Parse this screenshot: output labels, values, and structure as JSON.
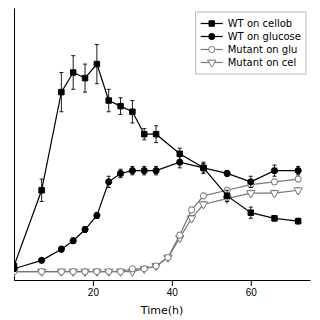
{
  "chart_data": {
    "type": "line",
    "xlabel": "Time(h)",
    "xlim": [
      0,
      75
    ],
    "ylim": [
      -0.02,
      0.95
    ],
    "xticks": [
      20,
      40,
      60
    ],
    "tick_labels": "x",
    "legend": "upper right",
    "series": [
      {
        "name": "WT on cellob",
        "color": "#000000",
        "marker": "square",
        "line_style": "solid",
        "x": [
          0,
          7,
          12,
          15,
          18,
          21,
          24,
          27,
          30,
          33,
          36,
          42,
          48,
          54,
          60,
          66,
          72
        ],
        "values": [
          0.03,
          0.3,
          0.65,
          0.72,
          0.7,
          0.75,
          0.62,
          0.6,
          0.58,
          0.5,
          0.5,
          0.43,
          0.38,
          0.28,
          0.22,
          0.2,
          0.19
        ],
        "errors": [
          0.01,
          0.04,
          0.07,
          0.06,
          0.05,
          0.07,
          0.04,
          0.03,
          0.04,
          0.02,
          0.03,
          0.02,
          0.02,
          0.02,
          0.02,
          0.01,
          0.01
        ]
      },
      {
        "name": "WT on glucose",
        "color": "#000000",
        "marker": "circle",
        "line_style": "solid",
        "x": [
          0,
          7,
          12,
          15,
          18,
          21,
          24,
          27,
          30,
          33,
          36,
          42,
          48,
          54,
          60,
          66,
          72
        ],
        "values": [
          0.02,
          0.05,
          0.09,
          0.12,
          0.16,
          0.21,
          0.33,
          0.36,
          0.37,
          0.37,
          0.37,
          0.4,
          0.38,
          0.36,
          0.33,
          0.37,
          0.37
        ],
        "errors": [
          0.005,
          0.005,
          0.01,
          0.01,
          0.01,
          0.01,
          0.02,
          0.015,
          0.015,
          0.015,
          0.015,
          0.02,
          0.015,
          0.01,
          0.02,
          0.02,
          0.015
        ]
      },
      {
        "name": "Mutant on glu",
        "color": "#777777",
        "marker": "circle-open",
        "line_style": "solid",
        "x": [
          0,
          7,
          12,
          15,
          18,
          21,
          24,
          27,
          30,
          33,
          36,
          39,
          42,
          45,
          48,
          54,
          60,
          66,
          72
        ],
        "values": [
          0.01,
          0.01,
          0.01,
          0.01,
          0.01,
          0.01,
          0.01,
          0.01,
          0.02,
          0.02,
          0.03,
          0.06,
          0.14,
          0.23,
          0.28,
          0.3,
          0.32,
          0.33,
          0.34
        ],
        "errors": [
          0.001,
          0.001,
          0.001,
          0.001,
          0.001,
          0.001,
          0.001,
          0.001,
          0.002,
          0.002,
          0.005,
          0.005,
          0.01,
          0.01,
          0.01,
          0.01,
          0.01,
          0.01,
          0.01
        ]
      },
      {
        "name": "Mutant on cel",
        "color": "#777777",
        "marker": "triangle-down-open",
        "line_style": "solid",
        "x": [
          0,
          7,
          12,
          15,
          18,
          21,
          24,
          27,
          30,
          33,
          36,
          39,
          42,
          45,
          48,
          54,
          60,
          66,
          72
        ],
        "values": [
          0.01,
          0.01,
          0.01,
          0.01,
          0.01,
          0.01,
          0.01,
          0.01,
          0.01,
          0.02,
          0.03,
          0.06,
          0.13,
          0.2,
          0.25,
          0.27,
          0.29,
          0.29,
          0.3
        ],
        "errors": [
          0.001,
          0.001,
          0.001,
          0.001,
          0.001,
          0.001,
          0.001,
          0.001,
          0.001,
          0.002,
          0.005,
          0.005,
          0.01,
          0.01,
          0.01,
          0.01,
          0.01,
          0.01,
          0.01
        ]
      }
    ]
  }
}
